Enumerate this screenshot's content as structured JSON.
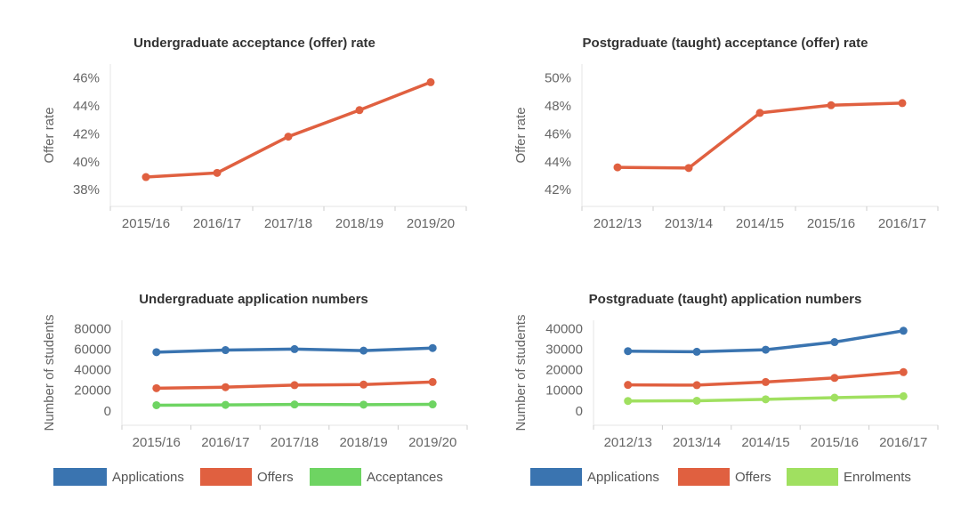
{
  "chart_data": [
    {
      "type": "line",
      "title": "Undergraduate acceptance (offer) rate",
      "xlabel": "",
      "ylabel": "Offer rate",
      "categories": [
        "2015/16",
        "2016/17",
        "2017/18",
        "2018/19",
        "2019/20"
      ],
      "yticks": [
        "38%",
        "40%",
        "42%",
        "44%",
        "46%"
      ],
      "ylim": [
        36.8,
        47
      ],
      "series": [
        {
          "values": [
            38.9,
            39.2,
            41.8,
            43.7,
            45.7
          ],
          "color": "#e06040"
        }
      ],
      "grid": false
    },
    {
      "type": "line",
      "title": "Postgraduate (taught) acceptance (offer) rate",
      "xlabel": "",
      "ylabel": "Offer rate",
      "categories": [
        "2012/13",
        "2013/14",
        "2014/15",
        "2015/16",
        "2016/17"
      ],
      "yticks": [
        "42%",
        "44%",
        "46%",
        "48%",
        "50%"
      ],
      "ylim": [
        40.8,
        51
      ],
      "series": [
        {
          "values": [
            43.6,
            43.55,
            47.5,
            48.05,
            48.2
          ],
          "color": "#e06040"
        }
      ],
      "grid": false
    },
    {
      "type": "line",
      "title": "Undergraduate application numbers",
      "xlabel": "",
      "ylabel": "Number of students",
      "categories": [
        "2015/16",
        "2016/17",
        "2017/18",
        "2018/19",
        "2019/20"
      ],
      "yticks": [
        "0",
        "20000",
        "40000",
        "60000",
        "80000"
      ],
      "ylim": [
        -14000,
        88000
      ],
      "series": [
        {
          "name": "Applications",
          "values": [
            57000,
            59000,
            60000,
            58500,
            61000
          ],
          "color": "#3a74b0"
        },
        {
          "name": "Offers",
          "values": [
            22000,
            23000,
            25000,
            25500,
            28000
          ],
          "color": "#e06040"
        },
        {
          "name": "Acceptances",
          "values": [
            5500,
            5800,
            6200,
            6000,
            6300
          ],
          "color": "#6ed462"
        }
      ],
      "legend": "bottom",
      "grid": false
    },
    {
      "type": "line",
      "title": "Postgraduate (taught) application numbers",
      "xlabel": "",
      "ylabel": "Number of students",
      "categories": [
        "2012/13",
        "2013/14",
        "2014/15",
        "2015/16",
        "2016/17"
      ],
      "yticks": [
        "0",
        "10000",
        "20000",
        "30000",
        "40000"
      ],
      "ylim": [
        -7000,
        44000
      ],
      "series": [
        {
          "name": "Applications",
          "values": [
            29000,
            28700,
            29700,
            33400,
            38900
          ],
          "color": "#3a74b0"
        },
        {
          "name": "Offers",
          "values": [
            12600,
            12500,
            14000,
            16000,
            18800
          ],
          "color": "#e06040"
        },
        {
          "name": "Enrolments",
          "values": [
            4800,
            4900,
            5600,
            6400,
            7100
          ],
          "color": "#a0e060"
        }
      ],
      "legend": "bottom",
      "grid": false
    }
  ]
}
